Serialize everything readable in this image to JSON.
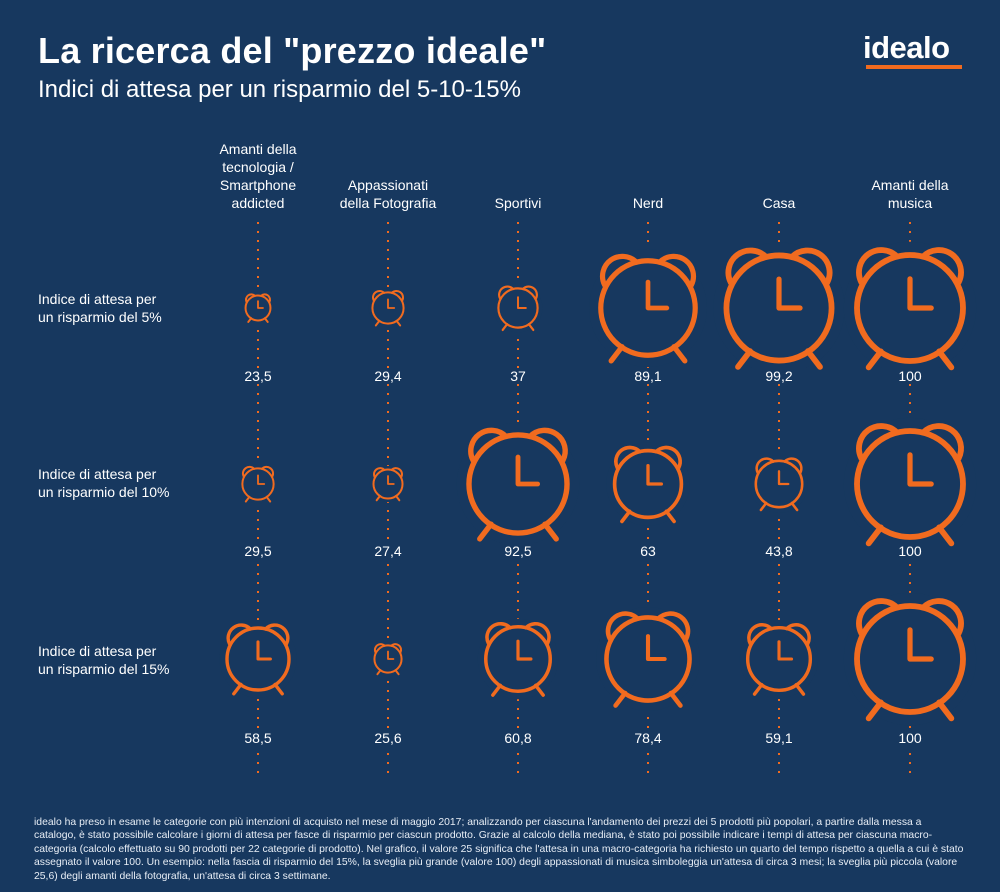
{
  "header": {
    "title": "La ricerca del \"prezzo ideale\"",
    "subtitle": "Indici di attesa per un risparmio del 5-10-15%",
    "logo": "idealo"
  },
  "colors": {
    "background": "#17385f",
    "accent": "#f16b1f",
    "text": "#ffffff"
  },
  "icon": "alarm-clock-icon",
  "chart_data": {
    "type": "table",
    "categories": [
      "Amanti della tecnologia / Smartphone addicted",
      "Appassionati della Fotografia",
      "Sportivi",
      "Nerd",
      "Casa",
      "Amanti della musica"
    ],
    "category_lines": [
      [
        "Amanti della",
        "tecnologia /",
        "Smartphone",
        "addicted"
      ],
      [
        "Appassionati",
        "della Fotografia"
      ],
      [
        "Sportivi"
      ],
      [
        "Nerd"
      ],
      [
        "Casa"
      ],
      [
        "Amanti della",
        "musica"
      ]
    ],
    "series": [
      {
        "name": "Indice di attesa per un risparmio del 5%",
        "label_lines": [
          "Indice di attesa per",
          "un risparmio del 5%"
        ],
        "values": [
          23.5,
          29.4,
          37,
          89.1,
          99.2,
          100
        ],
        "labels": [
          "23,5",
          "29,4",
          "37",
          "89,1",
          "99,2",
          "100"
        ]
      },
      {
        "name": "Indice di attesa per un risparmio del 10%",
        "label_lines": [
          "Indice di attesa per",
          "un risparmio del 10%"
        ],
        "values": [
          29.5,
          27.4,
          92.5,
          63,
          43.8,
          100
        ],
        "labels": [
          "29,5",
          "27,4",
          "92,5",
          "63",
          "43,8",
          "100"
        ]
      },
      {
        "name": "Indice di attesa per un risparmio del 15%",
        "label_lines": [
          "Indice di attesa per",
          "un risparmio del 15%"
        ],
        "values": [
          58.5,
          25.6,
          60.8,
          78.4,
          59.1,
          100
        ],
        "labels": [
          "58,5",
          "25,6",
          "60,8",
          "78,4",
          "59,1",
          "100"
        ]
      }
    ],
    "scale_max": 100
  },
  "footnote": "idealo ha preso in esame le categorie con più intenzioni di acquisto nel mese di maggio 2017; analizzando per ciascuna l'andamento dei prezzi dei 5 prodotti più popolari, a partire dalla messa a catalogo, è stato possibile calcolare i giorni di attesa per fasce di risparmio per ciascun prodotto. Grazie al calcolo della mediana, è stato poi possibile indicare i tempi di attesa per ciascuna macro-categoria (calcolo effettuato su 90 prodotti per 22 categorie di prodotto). Nel grafico, il valore 25 significa che l'attesa in una macro-categoria ha richiesto un quarto del tempo rispetto a quella a cui è stato assegnato il valore 100. Un esempio: nella fascia di risparmio del 15%, la sveglia più grande (valore 100) degli appassionati di musica simboleggia un'attesa di circa 3 mesi; la sveglia più piccola (valore 25,6) degli amanti della fotografia, un'attesa di circa 3 settimane."
}
